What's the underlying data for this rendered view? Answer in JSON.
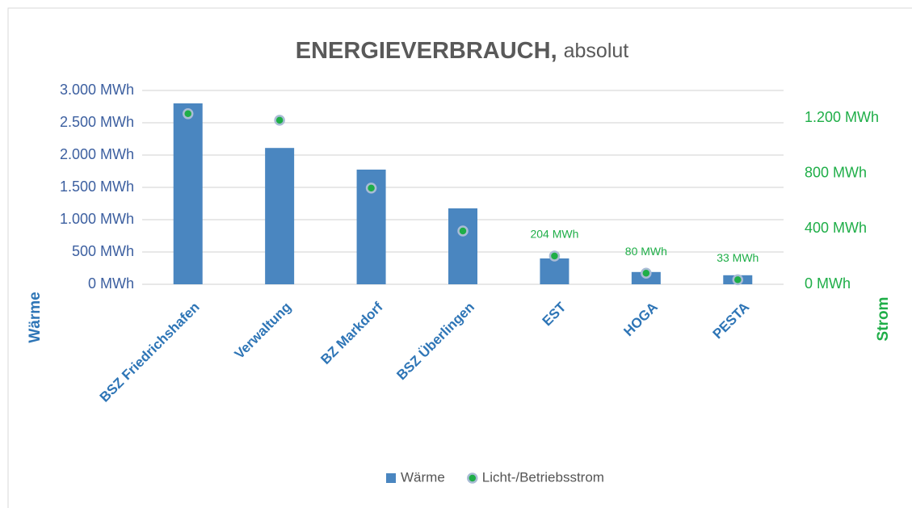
{
  "chart_data": {
    "type": "bar",
    "title": "ENERGIEVERBRAUCH,",
    "subtitle": "absolut",
    "categories": [
      "BSZ Friedrichshafen",
      "Verwaltung",
      "BZ Markdorf",
      "BSZ Überlingen",
      "EST",
      "HOGA",
      "PESTA"
    ],
    "series": [
      {
        "name": "Wärme",
        "type": "bar",
        "axis": "y",
        "color": "#4a86c0",
        "values": [
          2800,
          2110,
          1775,
          1175,
          400,
          190,
          140
        ]
      },
      {
        "name": "Licht-/Betriebsstrom",
        "type": "scatter",
        "axis": "y2",
        "color": "#1fae48",
        "values": [
          1232,
          1185,
          695,
          385,
          204,
          80,
          33
        ],
        "value_labels": [
          null,
          null,
          null,
          null,
          "204 MWh",
          "80 MWh",
          "33 MWh"
        ]
      }
    ],
    "y_label": "Wärme",
    "y2_label": "Strom",
    "ylim": [
      0,
      3000
    ],
    "yticks": [
      {
        "value": 0,
        "label": "0 MWh"
      },
      {
        "value": 500,
        "label": "500 MWh"
      },
      {
        "value": 1000,
        "label": "1.000 MWh"
      },
      {
        "value": 1500,
        "label": "1.500 MWh"
      },
      {
        "value": 2000,
        "label": "2.000 MWh"
      },
      {
        "value": 2500,
        "label": "2.500 MWh"
      },
      {
        "value": 3000,
        "label": "3.000 MWh"
      }
    ],
    "y2lim": [
      0,
      1400
    ],
    "y2ticks": [
      {
        "value": 0,
        "label": "0 MWh"
      },
      {
        "value": 400,
        "label": "400 MWh"
      },
      {
        "value": 800,
        "label": "800 MWh"
      },
      {
        "value": 1200,
        "label": "1.200 MWh"
      }
    ],
    "grid": true,
    "legend": "bottom"
  }
}
